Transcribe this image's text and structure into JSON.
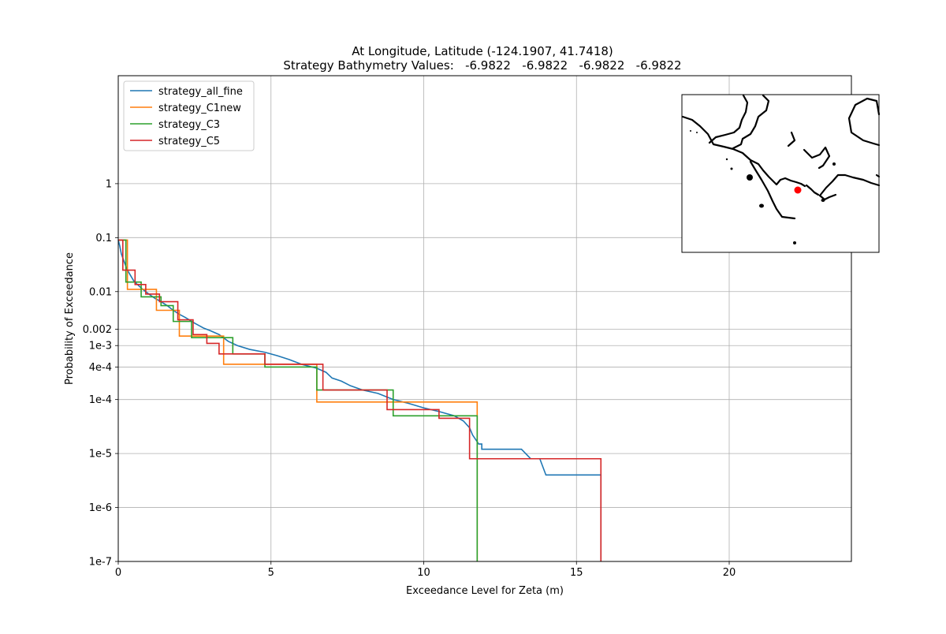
{
  "chart_data": {
    "type": "line",
    "title": "At Longitude, Latitude (-124.1907,  41.7418)",
    "subtitle": "Strategy Bathymetry Values:   -6.9822   -6.9822   -6.9822   -6.9822",
    "xlabel": "Exceedance Level for Zeta (m)",
    "ylabel": "Probability of Exceedance",
    "xlim": [
      0,
      24
    ],
    "ylim": [
      1e-07,
      100
    ],
    "yscale": "log",
    "grid": true,
    "legend_position": "top-left",
    "x_ticks": [
      {
        "value": 0,
        "label": "0"
      },
      {
        "value": 5,
        "label": "5"
      },
      {
        "value": 10,
        "label": "10"
      },
      {
        "value": 15,
        "label": "15"
      },
      {
        "value": 20,
        "label": "20"
      }
    ],
    "y_ticks": [
      {
        "value": 1,
        "label": "1"
      },
      {
        "value": 0.1,
        "label": "0.1"
      },
      {
        "value": 0.01,
        "label": "0.01"
      },
      {
        "value": 0.002,
        "label": "0.002"
      },
      {
        "value": 0.001,
        "label": "1e-3"
      },
      {
        "value": 0.0004,
        "label": "4e-4"
      },
      {
        "value": 0.0001,
        "label": "1e-4"
      },
      {
        "value": 1e-05,
        "label": "1e-5"
      },
      {
        "value": 1e-06,
        "label": "1e-6"
      },
      {
        "value": 1e-07,
        "label": "1e-7"
      }
    ],
    "series": [
      {
        "name": "strategy_all_fine",
        "color": "#1f77b4",
        "points": [
          [
            0.0,
            0.09
          ],
          [
            0.05,
            0.07
          ],
          [
            0.1,
            0.05
          ],
          [
            0.2,
            0.035
          ],
          [
            0.3,
            0.025
          ],
          [
            0.4,
            0.02
          ],
          [
            0.5,
            0.016
          ],
          [
            0.6,
            0.014
          ],
          [
            0.8,
            0.011
          ],
          [
            1.0,
            0.009
          ],
          [
            1.2,
            0.0075
          ],
          [
            1.4,
            0.0065
          ],
          [
            1.6,
            0.0055
          ],
          [
            1.8,
            0.0045
          ],
          [
            2.0,
            0.0038
          ],
          [
            2.2,
            0.0033
          ],
          [
            2.5,
            0.0026
          ],
          [
            2.8,
            0.0021
          ],
          [
            3.0,
            0.0019
          ],
          [
            3.3,
            0.0016
          ],
          [
            3.6,
            0.0012
          ],
          [
            3.9,
            0.001
          ],
          [
            4.3,
            0.00085
          ],
          [
            4.8,
            0.00075
          ],
          [
            5.2,
            0.00065
          ],
          [
            5.6,
            0.00055
          ],
          [
            6.0,
            0.00045
          ],
          [
            6.5,
            0.00038
          ],
          [
            6.8,
            0.00032
          ],
          [
            7.0,
            0.00025
          ],
          [
            7.3,
            0.00022
          ],
          [
            7.6,
            0.00018
          ],
          [
            8.0,
            0.00015
          ],
          [
            8.5,
            0.00013
          ],
          [
            9.0,
            0.0001
          ],
          [
            9.5,
            8.5e-05
          ],
          [
            10.0,
            7e-05
          ],
          [
            10.5,
            6e-05
          ],
          [
            11.0,
            5e-05
          ],
          [
            11.3,
            4e-05
          ],
          [
            11.5,
            3e-05
          ],
          [
            11.6,
            2.2e-05
          ],
          [
            11.8,
            1.5e-05
          ],
          [
            11.9,
            1.5e-05
          ],
          [
            11.9,
            1.2e-05
          ],
          [
            13.2,
            1.2e-05
          ],
          [
            13.5,
            8e-06
          ],
          [
            13.8,
            8e-06
          ],
          [
            14.0,
            4e-06
          ],
          [
            15.8,
            4e-06
          ],
          [
            15.8,
            1e-07
          ]
        ]
      },
      {
        "name": "strategy_C1new",
        "color": "#ff7f0e",
        "points": [
          [
            0.0,
            0.09
          ],
          [
            0.3,
            0.09
          ],
          [
            0.3,
            0.011
          ],
          [
            1.25,
            0.011
          ],
          [
            1.25,
            0.0045
          ],
          [
            2.0,
            0.0045
          ],
          [
            2.0,
            0.0015
          ],
          [
            3.45,
            0.0015
          ],
          [
            3.45,
            0.00045
          ],
          [
            6.5,
            0.00045
          ],
          [
            6.5,
            9e-05
          ],
          [
            11.75,
            9e-05
          ],
          [
            11.75,
            1e-07
          ]
        ]
      },
      {
        "name": "strategy_C3",
        "color": "#2ca02c",
        "points": [
          [
            0.0,
            0.09
          ],
          [
            0.25,
            0.09
          ],
          [
            0.25,
            0.015
          ],
          [
            0.75,
            0.015
          ],
          [
            0.75,
            0.008
          ],
          [
            1.4,
            0.008
          ],
          [
            1.4,
            0.0055
          ],
          [
            1.8,
            0.0055
          ],
          [
            1.8,
            0.0028
          ],
          [
            2.4,
            0.0028
          ],
          [
            2.4,
            0.0014
          ],
          [
            3.75,
            0.0014
          ],
          [
            3.75,
            0.0007
          ],
          [
            4.8,
            0.0007
          ],
          [
            4.8,
            0.0004
          ],
          [
            6.5,
            0.0004
          ],
          [
            6.5,
            0.00015
          ],
          [
            9.0,
            0.00015
          ],
          [
            9.0,
            5e-05
          ],
          [
            11.75,
            5e-05
          ],
          [
            11.75,
            1e-07
          ]
        ]
      },
      {
        "name": "strategy_C5",
        "color": "#d62728",
        "points": [
          [
            0.0,
            0.09
          ],
          [
            0.15,
            0.09
          ],
          [
            0.15,
            0.025
          ],
          [
            0.55,
            0.025
          ],
          [
            0.55,
            0.0135
          ],
          [
            0.9,
            0.0135
          ],
          [
            0.9,
            0.009
          ],
          [
            1.35,
            0.009
          ],
          [
            1.35,
            0.0065
          ],
          [
            1.95,
            0.0065
          ],
          [
            1.95,
            0.003
          ],
          [
            2.45,
            0.003
          ],
          [
            2.45,
            0.0016
          ],
          [
            2.9,
            0.0016
          ],
          [
            2.9,
            0.0011
          ],
          [
            3.3,
            0.0011
          ],
          [
            3.3,
            0.0007
          ],
          [
            4.8,
            0.0007
          ],
          [
            4.8,
            0.00045
          ],
          [
            6.7,
            0.00045
          ],
          [
            6.7,
            0.00015
          ],
          [
            8.8,
            0.00015
          ],
          [
            8.8,
            6.5e-05
          ],
          [
            10.5,
            6.5e-05
          ],
          [
            10.5,
            4.5e-05
          ],
          [
            11.5,
            4.5e-05
          ],
          [
            11.5,
            8e-06
          ],
          [
            15.8,
            8e-06
          ],
          [
            15.8,
            1e-07
          ]
        ]
      }
    ],
    "inset_map": {
      "marker_color": "#ff0000",
      "coastline_color": "#000000"
    }
  }
}
